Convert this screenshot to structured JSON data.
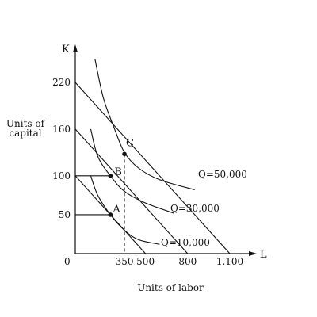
{
  "chart_data": {
    "type": "line",
    "title": "",
    "x_axis": {
      "letter": "L",
      "label": "Units of labor",
      "ticks": [
        {
          "value": 0,
          "label": "0"
        },
        {
          "value": 350,
          "label": "350"
        },
        {
          "value": 500,
          "label": "500"
        },
        {
          "value": 800,
          "label": "800"
        },
        {
          "value": 1100,
          "label": "1.100"
        }
      ],
      "range": [
        0,
        1250
      ]
    },
    "y_axis": {
      "letter": "K",
      "label_lines": [
        "Units of",
        "capital"
      ],
      "ticks": [
        {
          "value": 50,
          "label": "50"
        },
        {
          "value": 100,
          "label": "100"
        },
        {
          "value": 160,
          "label": "160"
        },
        {
          "value": 220,
          "label": "220"
        }
      ],
      "range": [
        0,
        290
      ]
    },
    "isocost_lines": [
      {
        "x": [
          0,
          500
        ],
        "y": [
          100,
          0
        ]
      },
      {
        "x": [
          0,
          800
        ],
        "y": [
          160,
          0
        ]
      },
      {
        "x": [
          0,
          1100
        ],
        "y": [
          220,
          0
        ]
      }
    ],
    "isoquants": [
      {
        "label": "Q=10,000",
        "x": [
          110,
          160,
          250,
          350,
          450,
          600
        ],
        "y": [
          100,
          75,
          50,
          30,
          18,
          12
        ]
      },
      {
        "label": "Q=30,000",
        "x": [
          110,
          160,
          250,
          350,
          500,
          700
        ],
        "y": [
          160,
          125,
          100,
          80,
          65,
          52
        ]
      },
      {
        "label": "Q=50,000",
        "x": [
          140,
          200,
          280,
          350,
          450,
          600,
          850
        ],
        "y": [
          250,
          200,
          160,
          130,
          110,
          95,
          82
        ]
      }
    ],
    "points": [
      {
        "label": "A",
        "x": 250,
        "y": 50
      },
      {
        "label": "B",
        "x": 250,
        "y": 100
      },
      {
        "label": "C",
        "x": 410,
        "y": 128
      }
    ],
    "dashed_guide": {
      "x": 350,
      "label": "350"
    },
    "grid": false
  }
}
